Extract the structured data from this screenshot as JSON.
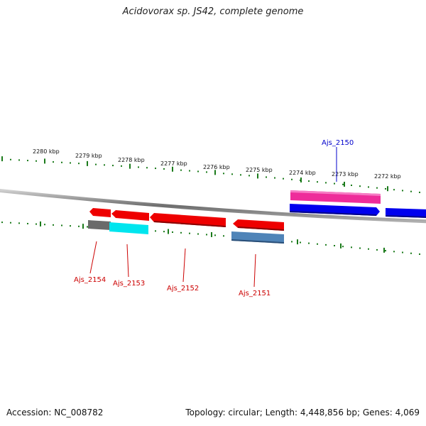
{
  "title": "Acidovorax sp. JS42, complete genome",
  "footer": {
    "accession": "Accession: NC_008782",
    "summary": "Topology: circular; Length: 4,448,856 bp; Genes: 4,069"
  },
  "scale_labels": [
    "2280 kbp",
    "2279 kbp",
    "2278 kbp",
    "2277 kbp",
    "2276 kbp",
    "2275 kbp",
    "2274 kbp",
    "2273 kbp",
    "2272 kbp"
  ],
  "genes": [
    {
      "label": "Ajs_2150",
      "strand": "forward",
      "color": "#0000cc"
    },
    {
      "label": "Ajs_2151",
      "strand": "reverse",
      "color": "#cc0000"
    },
    {
      "label": "Ajs_2152",
      "strand": "reverse",
      "color": "#cc0000"
    },
    {
      "label": "Ajs_2153",
      "strand": "reverse",
      "color": "#cc0000"
    },
    {
      "label": "Ajs_2154",
      "strand": "reverse",
      "color": "#cc0000"
    }
  ],
  "colors": {
    "backbone": "#8a8a8a",
    "tick": "#1a7a1a",
    "forward_cds": "#0000ff",
    "reverse_cds": "#ff0000",
    "rna_pink": "#ee2d9a",
    "cyan": "#00e5ee",
    "gray_feature": "#6a6a6a",
    "steel_blue": "#4f84b8"
  }
}
